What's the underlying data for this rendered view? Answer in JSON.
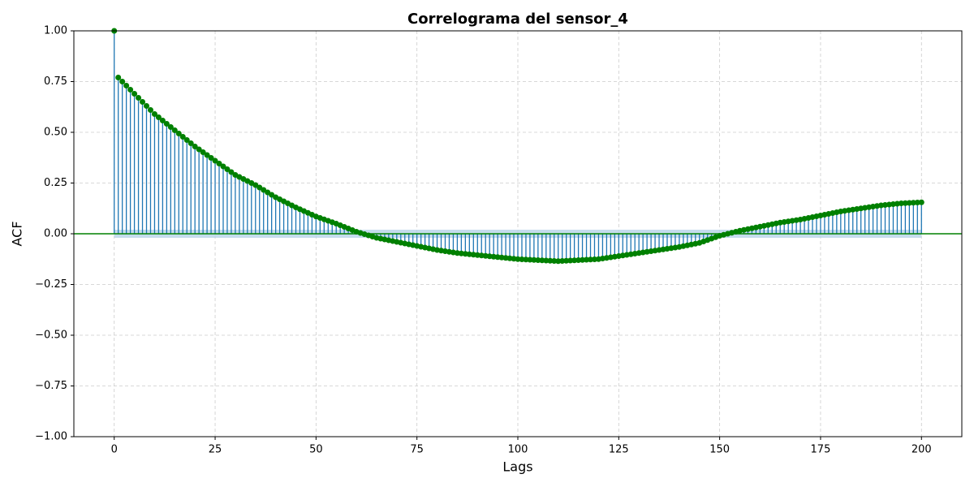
{
  "chart_data": {
    "type": "stem",
    "title": "Correlograma del sensor_4",
    "xlabel": "Lags",
    "ylabel": "ACF",
    "xlim": [
      -10,
      210
    ],
    "ylim": [
      -1,
      1
    ],
    "xticks": [
      0,
      25,
      50,
      75,
      100,
      125,
      150,
      175,
      200
    ],
    "yticks": [
      {
        "value": -1,
        "label": "−1.00"
      },
      {
        "value": -0.75,
        "label": "−0.75"
      },
      {
        "value": -0.5,
        "label": "−0.50"
      },
      {
        "value": -0.25,
        "label": "−0.25"
      },
      {
        "value": 0,
        "label": "0.00"
      },
      {
        "value": 0.25,
        "label": "0.25"
      },
      {
        "value": 0.5,
        "label": "0.50"
      },
      {
        "value": 0.75,
        "label": "0.75"
      },
      {
        "value": 1,
        "label": "1.00"
      }
    ],
    "grid": true,
    "stem_color": "#1f77b4",
    "marker_color": "#008000",
    "band_color": "#b7d3e8",
    "confint": 0.02,
    "x": [
      0,
      1,
      2,
      3,
      4,
      5,
      6,
      7,
      8,
      9,
      10,
      11,
      12,
      13,
      14,
      15,
      16,
      17,
      18,
      19,
      20,
      21,
      22,
      23,
      24,
      25,
      26,
      27,
      28,
      29,
      30,
      31,
      32,
      33,
      34,
      35,
      36,
      37,
      38,
      39,
      40,
      41,
      42,
      43,
      44,
      45,
      46,
      47,
      48,
      49,
      50,
      51,
      52,
      53,
      54,
      55,
      56,
      57,
      58,
      59,
      60,
      61,
      62,
      63,
      64,
      65,
      66,
      67,
      68,
      69,
      70,
      71,
      72,
      73,
      74,
      75,
      76,
      77,
      78,
      79,
      80,
      81,
      82,
      83,
      84,
      85,
      86,
      87,
      88,
      89,
      90,
      91,
      92,
      93,
      94,
      95,
      96,
      97,
      98,
      99,
      100,
      101,
      102,
      103,
      104,
      105,
      106,
      107,
      108,
      109,
      110,
      111,
      112,
      113,
      114,
      115,
      116,
      117,
      118,
      119,
      120,
      121,
      122,
      123,
      124,
      125,
      126,
      127,
      128,
      129,
      130,
      131,
      132,
      133,
      134,
      135,
      136,
      137,
      138,
      139,
      140,
      141,
      142,
      143,
      144,
      145,
      146,
      147,
      148,
      149,
      150,
      151,
      152,
      153,
      154,
      155,
      156,
      157,
      158,
      159,
      160,
      161,
      162,
      163,
      164,
      165,
      166,
      167,
      168,
      169,
      170,
      171,
      172,
      173,
      174,
      175,
      176,
      177,
      178,
      179,
      180,
      181,
      182,
      183,
      184,
      185,
      186,
      187,
      188,
      189,
      190,
      191,
      192,
      193,
      194,
      195,
      196,
      197,
      198,
      199,
      200
    ],
    "values": [
      1.0,
      0.77,
      0.75,
      0.73,
      0.71,
      0.69,
      0.67,
      0.65,
      0.63,
      0.61,
      0.59,
      0.574,
      0.558,
      0.542,
      0.526,
      0.51,
      0.494,
      0.478,
      0.462,
      0.446,
      0.43,
      0.416,
      0.402,
      0.388,
      0.374,
      0.36,
      0.346,
      0.332,
      0.318,
      0.304,
      0.29,
      0.28,
      0.27,
      0.26,
      0.25,
      0.24,
      0.228,
      0.216,
      0.204,
      0.192,
      0.18,
      0.17,
      0.16,
      0.15,
      0.14,
      0.13,
      0.121,
      0.112,
      0.103,
      0.094,
      0.085,
      0.078,
      0.071,
      0.064,
      0.057,
      0.05,
      0.042,
      0.034,
      0.026,
      0.018,
      0.01,
      0.004,
      -0.002,
      -0.008,
      -0.014,
      -0.02,
      -0.024,
      -0.028,
      -0.032,
      -0.036,
      -0.04,
      -0.044,
      -0.048,
      -0.052,
      -0.056,
      -0.06,
      -0.064,
      -0.068,
      -0.072,
      -0.076,
      -0.08,
      -0.083,
      -0.086,
      -0.089,
      -0.092,
      -0.095,
      -0.097,
      -0.099,
      -0.101,
      -0.103,
      -0.105,
      -0.107,
      -0.109,
      -0.111,
      -0.113,
      -0.115,
      -0.117,
      -0.119,
      -0.121,
      -0.123,
      -0.125,
      -0.126,
      -0.127,
      -0.128,
      -0.129,
      -0.13,
      -0.131,
      -0.132,
      -0.133,
      -0.134,
      -0.135,
      -0.134,
      -0.133,
      -0.132,
      -0.131,
      -0.13,
      -0.129,
      -0.128,
      -0.127,
      -0.126,
      -0.125,
      -0.122,
      -0.119,
      -0.116,
      -0.113,
      -0.11,
      -0.107,
      -0.104,
      -0.101,
      -0.098,
      -0.095,
      -0.092,
      -0.089,
      -0.086,
      -0.083,
      -0.08,
      -0.077,
      -0.074,
      -0.071,
      -0.068,
      -0.065,
      -0.061,
      -0.057,
      -0.053,
      -0.049,
      -0.045,
      -0.038,
      -0.031,
      -0.024,
      -0.017,
      -0.01,
      -0.005,
      0,
      0.005,
      0.01,
      0.015,
      0.019,
      0.023,
      0.027,
      0.031,
      0.035,
      0.039,
      0.043,
      0.047,
      0.051,
      0.055,
      0.058,
      0.061,
      0.064,
      0.067,
      0.07,
      0.074,
      0.078,
      0.082,
      0.086,
      0.09,
      0.094,
      0.098,
      0.102,
      0.106,
      0.11,
      0.113,
      0.116,
      0.119,
      0.122,
      0.125,
      0.128,
      0.131,
      0.134,
      0.137,
      0.14,
      0.142,
      0.144,
      0.146,
      0.148,
      0.15,
      0.151,
      0.152,
      0.153,
      0.154,
      0.155
    ]
  }
}
